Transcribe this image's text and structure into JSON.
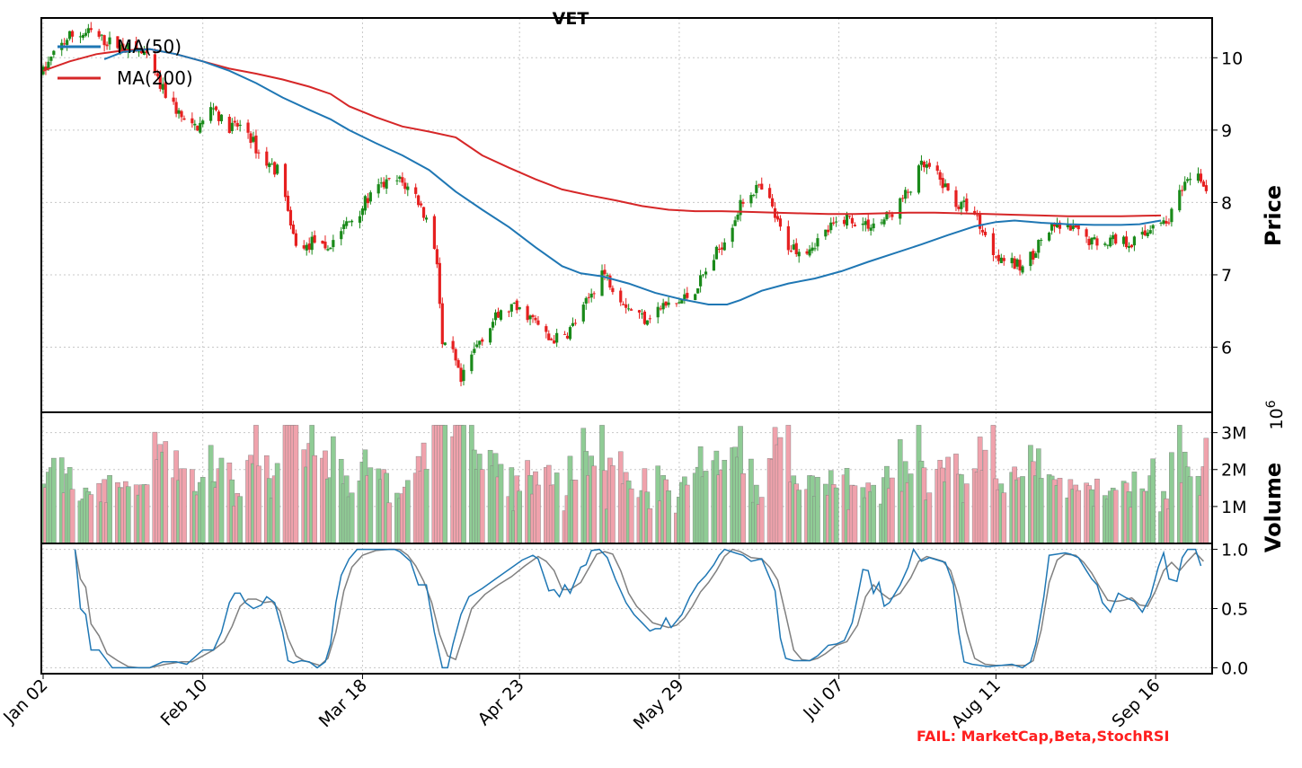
{
  "chart_data": {
    "type": "candlestick",
    "title": "VET",
    "price_panel": {
      "ylabel": "Price",
      "yticks": [
        6,
        7,
        8,
        9,
        10
      ],
      "ylim": [
        5.1,
        10.55
      ],
      "grid": true,
      "legend": {
        "placement": "top-left",
        "entries": [
          "MA(50)",
          "MA(200)"
        ]
      },
      "ma_colors": {
        "MA(50)": "#1f77b4",
        "MA(200)": "#d62728"
      },
      "candle_colors": {
        "up": "#1a8a1a",
        "down": "#e62020"
      },
      "ma50": [
        [
          23,
          9.98
        ],
        [
          30,
          10.08
        ],
        [
          40,
          10.12
        ],
        [
          50,
          10.05
        ],
        [
          60,
          9.95
        ],
        [
          70,
          9.82
        ],
        [
          80,
          9.65
        ],
        [
          90,
          9.45
        ],
        [
          100,
          9.28
        ],
        [
          108,
          9.15
        ],
        [
          115,
          9.0
        ],
        [
          125,
          8.82
        ],
        [
          135,
          8.65
        ],
        [
          145,
          8.45
        ],
        [
          155,
          8.15
        ],
        [
          165,
          7.9
        ],
        [
          175,
          7.66
        ],
        [
          185,
          7.38
        ],
        [
          195,
          7.12
        ],
        [
          202,
          7.02
        ],
        [
          210,
          6.98
        ],
        [
          220,
          6.88
        ],
        [
          230,
          6.75
        ],
        [
          240,
          6.66
        ],
        [
          250,
          6.59
        ],
        [
          257,
          6.59
        ],
        [
          262,
          6.65
        ],
        [
          270,
          6.78
        ],
        [
          280,
          6.88
        ],
        [
          290,
          6.95
        ],
        [
          300,
          7.05
        ],
        [
          310,
          7.18
        ],
        [
          320,
          7.3
        ],
        [
          330,
          7.42
        ],
        [
          340,
          7.55
        ],
        [
          350,
          7.67
        ],
        [
          358,
          7.73
        ],
        [
          365,
          7.75
        ],
        [
          375,
          7.72
        ],
        [
          385,
          7.7
        ],
        [
          395,
          7.69
        ],
        [
          405,
          7.69
        ],
        [
          412,
          7.7
        ],
        [
          420,
          7.75
        ]
      ],
      "ma200": [
        [
          0,
          9.82
        ],
        [
          10,
          9.95
        ],
        [
          20,
          10.05
        ],
        [
          30,
          10.1
        ],
        [
          40,
          10.12
        ],
        [
          50,
          10.05
        ],
        [
          60,
          9.95
        ],
        [
          70,
          9.85
        ],
        [
          80,
          9.78
        ],
        [
          90,
          9.7
        ],
        [
          100,
          9.6
        ],
        [
          108,
          9.5
        ],
        [
          115,
          9.33
        ],
        [
          125,
          9.18
        ],
        [
          135,
          9.05
        ],
        [
          145,
          8.98
        ],
        [
          155,
          8.9
        ],
        [
          165,
          8.65
        ],
        [
          175,
          8.48
        ],
        [
          185,
          8.32
        ],
        [
          195,
          8.18
        ],
        [
          205,
          8.1
        ],
        [
          215,
          8.03
        ],
        [
          225,
          7.95
        ],
        [
          235,
          7.9
        ],
        [
          245,
          7.88
        ],
        [
          255,
          7.88
        ],
        [
          265,
          7.87
        ],
        [
          275,
          7.86
        ],
        [
          285,
          7.85
        ],
        [
          295,
          7.84
        ],
        [
          305,
          7.84
        ],
        [
          315,
          7.85
        ],
        [
          325,
          7.86
        ],
        [
          335,
          7.86
        ],
        [
          345,
          7.85
        ],
        [
          355,
          7.84
        ],
        [
          365,
          7.83
        ],
        [
          375,
          7.82
        ],
        [
          385,
          7.81
        ],
        [
          395,
          7.81
        ],
        [
          405,
          7.81
        ],
        [
          420,
          7.82
        ]
      ]
    },
    "volume_panel": {
      "ylabel": "Volume",
      "scale_label": "10",
      "scale_exponent": "6",
      "ytick_labels": [
        "1M",
        "2M",
        "3M"
      ],
      "yticks": [
        1,
        2,
        3
      ],
      "ylim": [
        0,
        3.55
      ],
      "bar_colors": {
        "up": "#8fcc95",
        "down": "#f0a2ac"
      }
    },
    "stoch_panel": {
      "ytick_labels": [
        "0.0",
        "0.5",
        "1.0"
      ],
      "yticks": [
        0,
        0.5,
        1.0
      ],
      "ylim": [
        -0.05,
        1.05
      ],
      "line_colors": {
        "k": "#1f77b4",
        "d": "#808080"
      },
      "k": [
        [
          12,
          1.0
        ],
        [
          14,
          0.5
        ],
        [
          16,
          0.45
        ],
        [
          18,
          0.15
        ],
        [
          21,
          0.15
        ],
        [
          26,
          0.0
        ],
        [
          32,
          0.0
        ],
        [
          36,
          0.0
        ],
        [
          40,
          0.0
        ],
        [
          45,
          0.05
        ],
        [
          50,
          0.05
        ],
        [
          54,
          0.03
        ],
        [
          60,
          0.15
        ],
        [
          64,
          0.15
        ],
        [
          67,
          0.3
        ],
        [
          70,
          0.55
        ],
        [
          72,
          0.63
        ],
        [
          74,
          0.63
        ],
        [
          76,
          0.55
        ],
        [
          79,
          0.5
        ],
        [
          82,
          0.53
        ],
        [
          84,
          0.6
        ],
        [
          87,
          0.55
        ],
        [
          90,
          0.3
        ],
        [
          92,
          0.06
        ],
        [
          94,
          0.04
        ],
        [
          97,
          0.06
        ],
        [
          100,
          0.05
        ],
        [
          103,
          0.0
        ],
        [
          106,
          0.05
        ],
        [
          108,
          0.2
        ],
        [
          110,
          0.55
        ],
        [
          112,
          0.78
        ],
        [
          115,
          0.92
        ],
        [
          118,
          1.0
        ],
        [
          125,
          1.0
        ],
        [
          130,
          1.0
        ],
        [
          132,
          1.0
        ],
        [
          134,
          0.98
        ],
        [
          138,
          0.9
        ],
        [
          141,
          0.7
        ],
        [
          144,
          0.7
        ],
        [
          147,
          0.3
        ],
        [
          150,
          0.0
        ],
        [
          152,
          0.0
        ],
        [
          154,
          0.2
        ],
        [
          157,
          0.45
        ],
        [
          160,
          0.6
        ],
        [
          165,
          0.67
        ],
        [
          170,
          0.75
        ],
        [
          175,
          0.83
        ],
        [
          180,
          0.91
        ],
        [
          184,
          0.95
        ],
        [
          186,
          0.92
        ],
        [
          190,
          0.65
        ],
        [
          192,
          0.66
        ],
        [
          194,
          0.6
        ],
        [
          196,
          0.7
        ],
        [
          198,
          0.63
        ],
        [
          202,
          0.85
        ],
        [
          204,
          0.87
        ],
        [
          206,
          0.99
        ],
        [
          209,
          1.0
        ],
        [
          212,
          0.93
        ],
        [
          215,
          0.75
        ],
        [
          219,
          0.55
        ],
        [
          222,
          0.45
        ],
        [
          225,
          0.38
        ],
        [
          228,
          0.31
        ],
        [
          230,
          0.33
        ],
        [
          232,
          0.33
        ],
        [
          234,
          0.42
        ],
        [
          236,
          0.34
        ],
        [
          240,
          0.45
        ],
        [
          243,
          0.6
        ],
        [
          246,
          0.71
        ],
        [
          249,
          0.78
        ],
        [
          252,
          0.87
        ],
        [
          254,
          0.95
        ],
        [
          256,
          1.0
        ],
        [
          260,
          0.97
        ],
        [
          263,
          0.95
        ],
        [
          266,
          0.9
        ],
        [
          270,
          0.92
        ],
        [
          275,
          0.65
        ],
        [
          277,
          0.25
        ],
        [
          279,
          0.08
        ],
        [
          282,
          0.06
        ],
        [
          285,
          0.06
        ],
        [
          288,
          0.06
        ],
        [
          291,
          0.1
        ],
        [
          295,
          0.19
        ],
        [
          298,
          0.2
        ],
        [
          301,
          0.23
        ],
        [
          304,
          0.38
        ],
        [
          306,
          0.6
        ],
        [
          308,
          0.83
        ],
        [
          310,
          0.82
        ],
        [
          312,
          0.63
        ],
        [
          314,
          0.72
        ],
        [
          316,
          0.52
        ],
        [
          318,
          0.55
        ],
        [
          322,
          0.7
        ],
        [
          325,
          0.85
        ],
        [
          327,
          1.0
        ],
        [
          330,
          0.9
        ],
        [
          333,
          0.93
        ],
        [
          336,
          0.91
        ],
        [
          339,
          0.89
        ],
        [
          342,
          0.7
        ],
        [
          344,
          0.3
        ],
        [
          346,
          0.05
        ],
        [
          349,
          0.03
        ],
        [
          352,
          0.02
        ],
        [
          355,
          0.01
        ],
        [
          360,
          0.02
        ],
        [
          364,
          0.03
        ],
        [
          368,
          0.0
        ],
        [
          371,
          0.05
        ],
        [
          373,
          0.2
        ],
        [
          376,
          0.6
        ],
        [
          378,
          0.95
        ],
        [
          381,
          0.96
        ],
        [
          384,
          0.97
        ],
        [
          386,
          0.96
        ],
        [
          389,
          0.93
        ],
        [
          392,
          0.82
        ],
        [
          394,
          0.75
        ],
        [
          396,
          0.7
        ],
        [
          398,
          0.55
        ],
        [
          401,
          0.47
        ],
        [
          404,
          0.63
        ],
        [
          407,
          0.59
        ],
        [
          410,
          0.56
        ],
        [
          413,
          0.47
        ],
        [
          416,
          0.6
        ],
        [
          419,
          0.85
        ],
        [
          421,
          0.97
        ],
        [
          423,
          0.75
        ],
        [
          426,
          0.73
        ],
        [
          428,
          0.93
        ],
        [
          430,
          1.0
        ],
        [
          433,
          1.0
        ],
        [
          435,
          0.86
        ]
      ],
      "d": [
        [
          12,
          1.0
        ],
        [
          14,
          0.75
        ],
        [
          16,
          0.68
        ],
        [
          18,
          0.37
        ],
        [
          21,
          0.27
        ],
        [
          24,
          0.12
        ],
        [
          28,
          0.06
        ],
        [
          32,
          0.01
        ],
        [
          36,
          0.0
        ],
        [
          40,
          0.0
        ],
        [
          46,
          0.03
        ],
        [
          52,
          0.05
        ],
        [
          56,
          0.05
        ],
        [
          60,
          0.1
        ],
        [
          64,
          0.15
        ],
        [
          68,
          0.22
        ],
        [
          71,
          0.35
        ],
        [
          74,
          0.52
        ],
        [
          77,
          0.58
        ],
        [
          80,
          0.58
        ],
        [
          83,
          0.55
        ],
        [
          86,
          0.56
        ],
        [
          89,
          0.48
        ],
        [
          92,
          0.25
        ],
        [
          95,
          0.1
        ],
        [
          98,
          0.06
        ],
        [
          101,
          0.04
        ],
        [
          104,
          0.02
        ],
        [
          107,
          0.08
        ],
        [
          110,
          0.3
        ],
        [
          113,
          0.65
        ],
        [
          116,
          0.85
        ],
        [
          120,
          0.95
        ],
        [
          125,
          0.99
        ],
        [
          130,
          1.0
        ],
        [
          134,
          1.0
        ],
        [
          137,
          0.95
        ],
        [
          140,
          0.86
        ],
        [
          143,
          0.73
        ],
        [
          146,
          0.55
        ],
        [
          149,
          0.28
        ],
        [
          152,
          0.1
        ],
        [
          155,
          0.07
        ],
        [
          158,
          0.28
        ],
        [
          161,
          0.5
        ],
        [
          166,
          0.62
        ],
        [
          171,
          0.7
        ],
        [
          176,
          0.77
        ],
        [
          181,
          0.86
        ],
        [
          186,
          0.94
        ],
        [
          189,
          0.9
        ],
        [
          192,
          0.82
        ],
        [
          195,
          0.66
        ],
        [
          198,
          0.66
        ],
        [
          202,
          0.72
        ],
        [
          205,
          0.84
        ],
        [
          208,
          0.96
        ],
        [
          211,
          0.98
        ],
        [
          214,
          0.96
        ],
        [
          217,
          0.82
        ],
        [
          220,
          0.63
        ],
        [
          223,
          0.52
        ],
        [
          226,
          0.45
        ],
        [
          229,
          0.38
        ],
        [
          232,
          0.36
        ],
        [
          235,
          0.34
        ],
        [
          238,
          0.36
        ],
        [
          241,
          0.42
        ],
        [
          244,
          0.52
        ],
        [
          247,
          0.64
        ],
        [
          250,
          0.72
        ],
        [
          253,
          0.82
        ],
        [
          256,
          0.94
        ],
        [
          259,
          1.0
        ],
        [
          262,
          0.98
        ],
        [
          266,
          0.93
        ],
        [
          270,
          0.92
        ],
        [
          273,
          0.85
        ],
        [
          276,
          0.74
        ],
        [
          279,
          0.45
        ],
        [
          282,
          0.15
        ],
        [
          285,
          0.07
        ],
        [
          288,
          0.06
        ],
        [
          291,
          0.08
        ],
        [
          294,
          0.12
        ],
        [
          298,
          0.19
        ],
        [
          302,
          0.22
        ],
        [
          306,
          0.36
        ],
        [
          309,
          0.6
        ],
        [
          312,
          0.7
        ],
        [
          315,
          0.63
        ],
        [
          318,
          0.58
        ],
        [
          322,
          0.63
        ],
        [
          326,
          0.76
        ],
        [
          329,
          0.9
        ],
        [
          332,
          0.94
        ],
        [
          335,
          0.92
        ],
        [
          338,
          0.9
        ],
        [
          341,
          0.82
        ],
        [
          344,
          0.6
        ],
        [
          347,
          0.3
        ],
        [
          350,
          0.08
        ],
        [
          354,
          0.03
        ],
        [
          358,
          0.02
        ],
        [
          362,
          0.02
        ],
        [
          366,
          0.02
        ],
        [
          369,
          0.02
        ],
        [
          372,
          0.06
        ],
        [
          375,
          0.32
        ],
        [
          378,
          0.72
        ],
        [
          381,
          0.91
        ],
        [
          384,
          0.96
        ],
        [
          388,
          0.95
        ],
        [
          391,
          0.89
        ],
        [
          394,
          0.8
        ],
        [
          397,
          0.68
        ],
        [
          400,
          0.57
        ],
        [
          403,
          0.56
        ],
        [
          406,
          0.57
        ],
        [
          409,
          0.59
        ],
        [
          412,
          0.53
        ],
        [
          415,
          0.52
        ],
        [
          418,
          0.65
        ],
        [
          421,
          0.82
        ],
        [
          424,
          0.89
        ],
        [
          427,
          0.82
        ],
        [
          430,
          0.9
        ],
        [
          433,
          0.97
        ],
        [
          436,
          0.9
        ]
      ]
    }
  },
  "x_axis": {
    "tick_labels": [
      "Jan 02",
      "Feb 10",
      "Mar 18",
      "Apr 23",
      "May 29",
      "Jul 07",
      "Aug 11",
      "Sep 16"
    ]
  },
  "footer": {
    "fail_text": "FAIL: MarketCap,Beta,StochRSI"
  }
}
